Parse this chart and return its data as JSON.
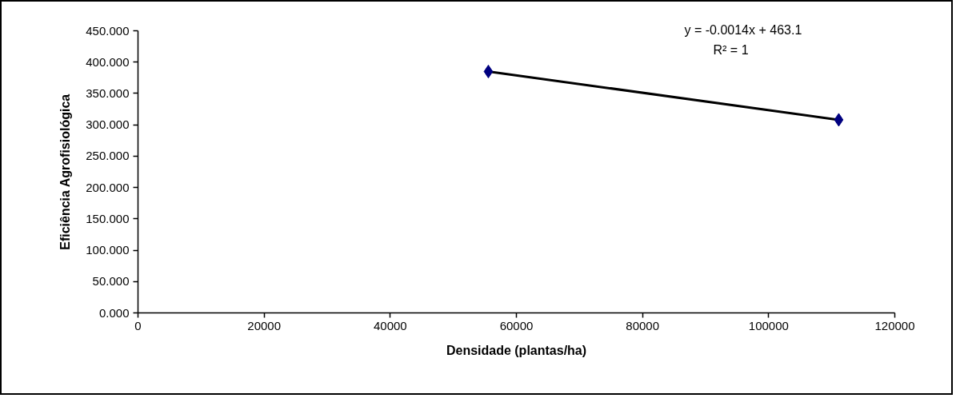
{
  "chart_data": {
    "type": "scatter",
    "xlabel": "Densidade (plantas/ha)",
    "ylabel": "Eficiência Agrofisiológica",
    "x": [
      55555,
      111111
    ],
    "marker": "diamond",
    "series": [
      {
        "type": "line",
        "color": "#000000",
        "marker": "none",
        "values": [
          385,
          308
        ]
      },
      {
        "color": "#000080",
        "values": [
          385,
          308
        ]
      }
    ],
    "annotations": [
      "y = -0.0014x + 463.1",
      "R² = 1"
    ],
    "xlim": [
      0,
      120000
    ],
    "xticks": [
      0,
      20000,
      40000,
      60000,
      80000,
      100000,
      120000
    ],
    "ylim": [
      0,
      450
    ],
    "yticks": [
      {
        "value": 0,
        "label": "0.000"
      },
      {
        "value": 50,
        "label": "50.000"
      },
      {
        "value": 100,
        "label": "100.000"
      },
      {
        "value": 150,
        "label": "150.000"
      },
      {
        "value": 200,
        "label": "200.000"
      },
      {
        "value": 250,
        "label": "250.000"
      },
      {
        "value": 300,
        "label": "300.000"
      },
      {
        "value": 350,
        "label": "350.000"
      },
      {
        "value": 400,
        "label": "400.000"
      },
      {
        "value": 450,
        "label": "450.000"
      }
    ]
  }
}
